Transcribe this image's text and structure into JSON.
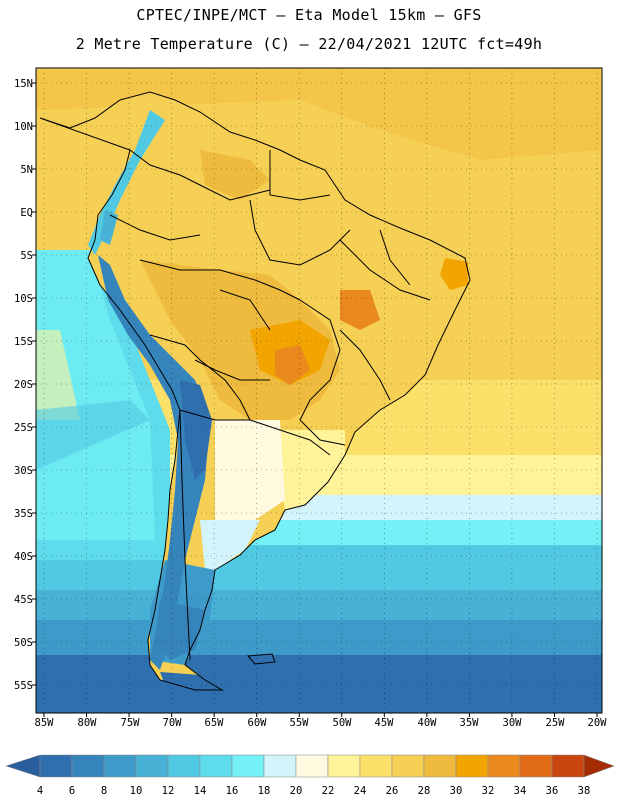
{
  "header": {
    "line1": "CPTEC/INPE/MCT –  Eta Model 15km – GFS",
    "line2": "2 Metre Temperature (C) – 22/04/2021 12UTC fct=49h"
  },
  "axes": {
    "lat_labels": [
      "15N",
      "10N",
      "5N",
      "EQ",
      "5S",
      "10S",
      "15S",
      "20S",
      "25S",
      "30S",
      "35S",
      "40S",
      "45S",
      "50S",
      "55S"
    ],
    "lon_labels": [
      "85W",
      "80W",
      "75W",
      "70W",
      "65W",
      "60W",
      "55W",
      "50W",
      "45W",
      "40W",
      "35W",
      "30W",
      "25W",
      "20W"
    ]
  },
  "legend": {
    "values": [
      "4",
      "6",
      "8",
      "10",
      "12",
      "14",
      "16",
      "18",
      "20",
      "22",
      "24",
      "26",
      "28",
      "30",
      "32",
      "34",
      "36",
      "38"
    ],
    "colors": [
      "#2a5e9e",
      "#2f6fae",
      "#3684bc",
      "#3e9bc9",
      "#47b2d6",
      "#52c9e2",
      "#5fdcec",
      "#74f1f6",
      "#d3f4fa",
      "#fff9e0",
      "#fff39a",
      "#fbe06a",
      "#f6cf55",
      "#efbb3e",
      "#f2a400",
      "#ea8a1e",
      "#e06a15",
      "#c94510",
      "#a52d06"
    ]
  }
}
